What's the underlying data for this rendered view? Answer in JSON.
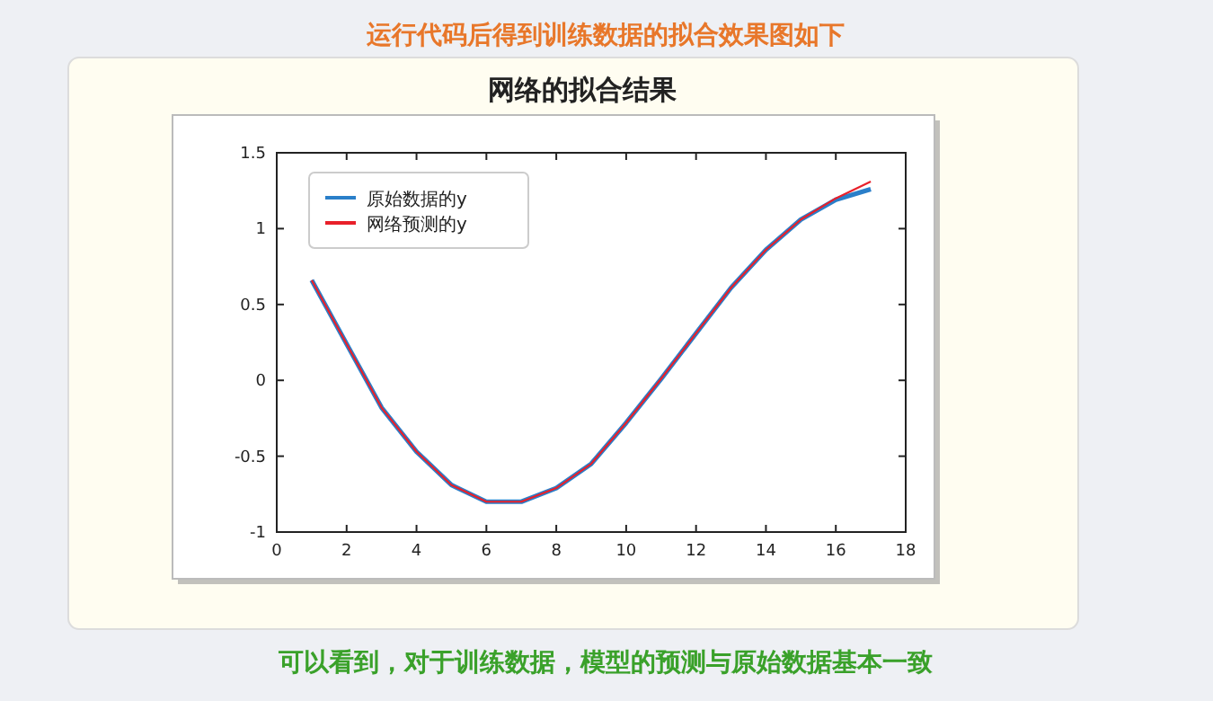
{
  "chart_data": {
    "type": "line",
    "title": "网络的拟合结果",
    "annotations": [
      "运行代码后得到训练数据的拟合效果图如下",
      "可以看到，对于训练数据，模型的预测与原始数据基本一致"
    ],
    "x": [
      1,
      2,
      3,
      4,
      5,
      6,
      7,
      8,
      9,
      10,
      11,
      12,
      13,
      14,
      15,
      16,
      17
    ],
    "series": [
      {
        "name": "原始数据的y",
        "color": "#2a7fc9",
        "values": [
          0.66,
          0.24,
          -0.18,
          -0.47,
          -0.69,
          -0.8,
          -0.8,
          -0.71,
          -0.55,
          -0.28,
          0.01,
          0.31,
          0.61,
          0.86,
          1.06,
          1.19,
          1.26
        ]
      },
      {
        "name": "网络预测的y",
        "color": "#e8202a",
        "values": [
          0.66,
          0.24,
          -0.18,
          -0.47,
          -0.69,
          -0.8,
          -0.8,
          -0.71,
          -0.55,
          -0.28,
          0.01,
          0.31,
          0.61,
          0.86,
          1.06,
          1.2,
          1.31
        ]
      }
    ],
    "xlim": [
      0,
      18
    ],
    "xticks": [
      0,
      2,
      4,
      6,
      8,
      10,
      12,
      14,
      16,
      18
    ],
    "ylim": [
      -1,
      1.5
    ],
    "yticks": [
      -1,
      -0.5,
      0,
      0.5,
      1,
      1.5
    ],
    "grid": false,
    "legend": "top left",
    "marker": "none",
    "line_style": "solid"
  }
}
